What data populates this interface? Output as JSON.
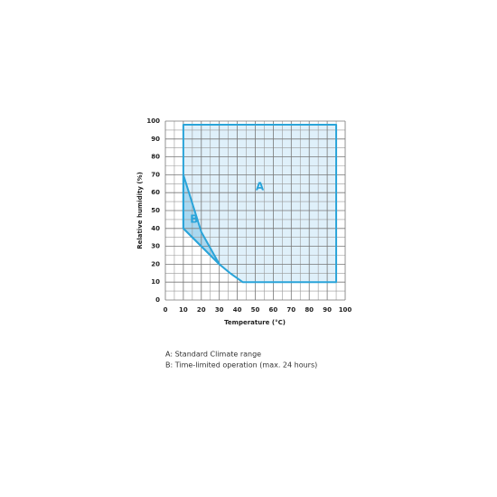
{
  "chart_data": {
    "type": "area-polygon",
    "xlabel": "Temperature (°C)",
    "ylabel": "Relative humidity (%)",
    "xlim": [
      0,
      100
    ],
    "ylim": [
      0,
      100
    ],
    "xticks": [
      0,
      10,
      20,
      30,
      40,
      50,
      60,
      70,
      80,
      90,
      100
    ],
    "yticks": [
      0,
      10,
      20,
      30,
      40,
      50,
      60,
      70,
      80,
      90,
      100
    ],
    "grid": true,
    "series": [
      {
        "name": "A",
        "color": "#dff0fa",
        "x": [
          10,
          95,
          95,
          43,
          36,
          30,
          10
        ],
        "values": [
          98,
          98,
          10,
          10,
          15,
          20,
          40
        ]
      },
      {
        "name": "B",
        "color": "#a9d8f0",
        "x": [
          10,
          20,
          30,
          10
        ],
        "values": [
          70,
          38,
          20,
          40
        ]
      }
    ],
    "notes": [
      "A: Standard Climate range",
      "B: Time-limited operation (max. 24 hours)"
    ]
  }
}
